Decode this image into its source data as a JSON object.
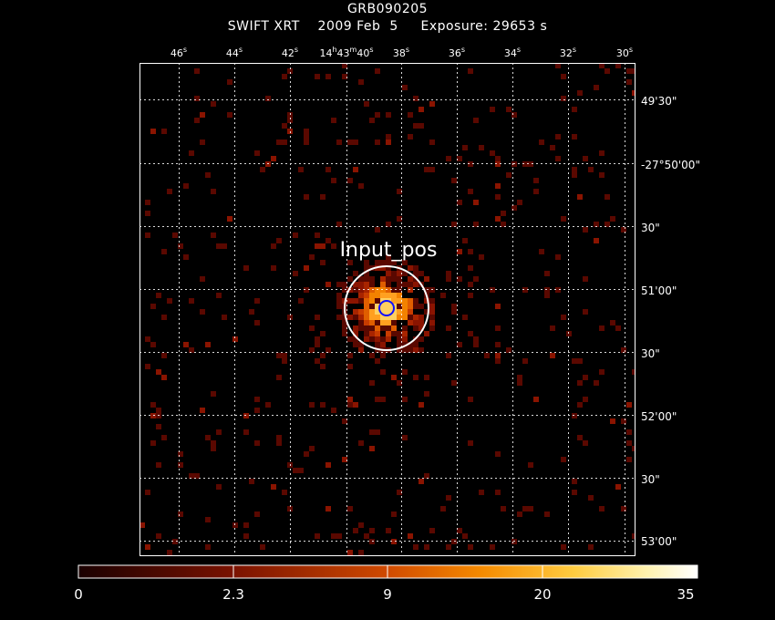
{
  "header": {
    "source_name": "GRB090205",
    "observation_line": "SWIFT XRT    2009 Feb  5     Exposure: 29653 s"
  },
  "image": {
    "marker_label": "Input_pos",
    "ra_ticks": [
      {
        "label": "46s"
      },
      {
        "label": "44s"
      },
      {
        "label": "42s"
      },
      {
        "label": "14h43m40s"
      },
      {
        "label": "38s"
      },
      {
        "label": "36s"
      },
      {
        "label": "34s"
      },
      {
        "label": "32s"
      },
      {
        "label": "30s"
      }
    ],
    "dec_ticks": [
      {
        "label": "49'30\""
      },
      {
        "label": "-27°50'00\""
      },
      {
        "label": "30\""
      },
      {
        "label": "51'00\""
      },
      {
        "label": "30\""
      },
      {
        "label": "52'00\""
      },
      {
        "label": "30\""
      },
      {
        "label": "53'00\""
      }
    ]
  },
  "colorbar": {
    "labels": [
      "0",
      "2.3",
      "9",
      "20",
      "35"
    ],
    "colors": [
      "#200000",
      "#6a0d00",
      "#b83200",
      "#f07a00",
      "#ffc030",
      "#ffee90",
      "#ffffff"
    ]
  }
}
